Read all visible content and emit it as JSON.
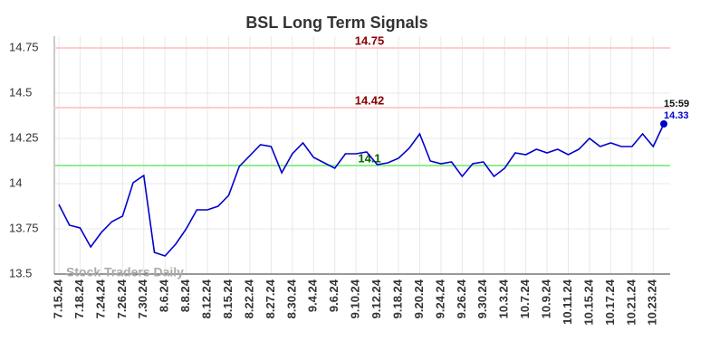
{
  "chart_data": {
    "type": "line",
    "title": "BSL Long Term Signals",
    "categories": [
      "7.15.24",
      null,
      "7.18.24",
      null,
      "7.24.24",
      null,
      "7.26.24",
      null,
      "7.30.24",
      null,
      "8.6.24",
      null,
      "8.8.24",
      null,
      "8.12.24",
      null,
      "8.15.24",
      null,
      "8.22.24",
      null,
      "8.27.24",
      null,
      "8.30.24",
      null,
      "9.4.24",
      null,
      "9.6.24",
      null,
      "9.10.24",
      null,
      "9.12.24",
      null,
      "9.18.24",
      null,
      "9.20.24",
      null,
      "9.24.24",
      null,
      "9.26.24",
      null,
      "9.30.24",
      null,
      "10.3.24",
      null,
      "10.7.24",
      null,
      "10.9.24",
      null,
      "10.11.24",
      null,
      "10.15.24",
      null,
      "10.17.24",
      null,
      "10.21.24",
      null,
      "10.23.24",
      null
    ],
    "values": [
      13.885,
      13.77,
      13.755,
      13.65,
      13.73,
      13.79,
      13.82,
      14.005,
      14.045,
      13.62,
      13.6,
      13.665,
      13.75,
      13.855,
      13.855,
      13.875,
      13.935,
      14.095,
      14.155,
      14.215,
      14.205,
      14.06,
      14.165,
      14.225,
      14.145,
      14.115,
      14.085,
      14.165,
      14.165,
      14.175,
      14.105,
      14.115,
      14.14,
      14.195,
      14.275,
      14.125,
      14.11,
      14.12,
      14.04,
      14.11,
      14.12,
      14.04,
      14.085,
      14.17,
      14.16,
      14.19,
      14.17,
      14.19,
      14.16,
      14.19,
      14.25,
      14.205,
      14.225,
      14.205,
      14.205,
      14.275,
      14.205,
      14.33
    ],
    "color": "#0000cc",
    "ylim": [
      13.5,
      14.75
    ],
    "yticks": [
      13.5,
      13.75,
      14,
      14.25,
      14.5,
      14.75
    ],
    "grid": true,
    "hlines": [
      {
        "value": 14.75,
        "color": "#ffcccc",
        "label_color": "#8b0000"
      },
      {
        "value": 14.42,
        "color": "#ffcccc",
        "label_color": "#8b0000"
      },
      {
        "value": 14.1,
        "color": "#90ee90",
        "label_color": "#006400"
      }
    ],
    "last_time": "15:59",
    "watermark": "Stock Traders Daily"
  }
}
